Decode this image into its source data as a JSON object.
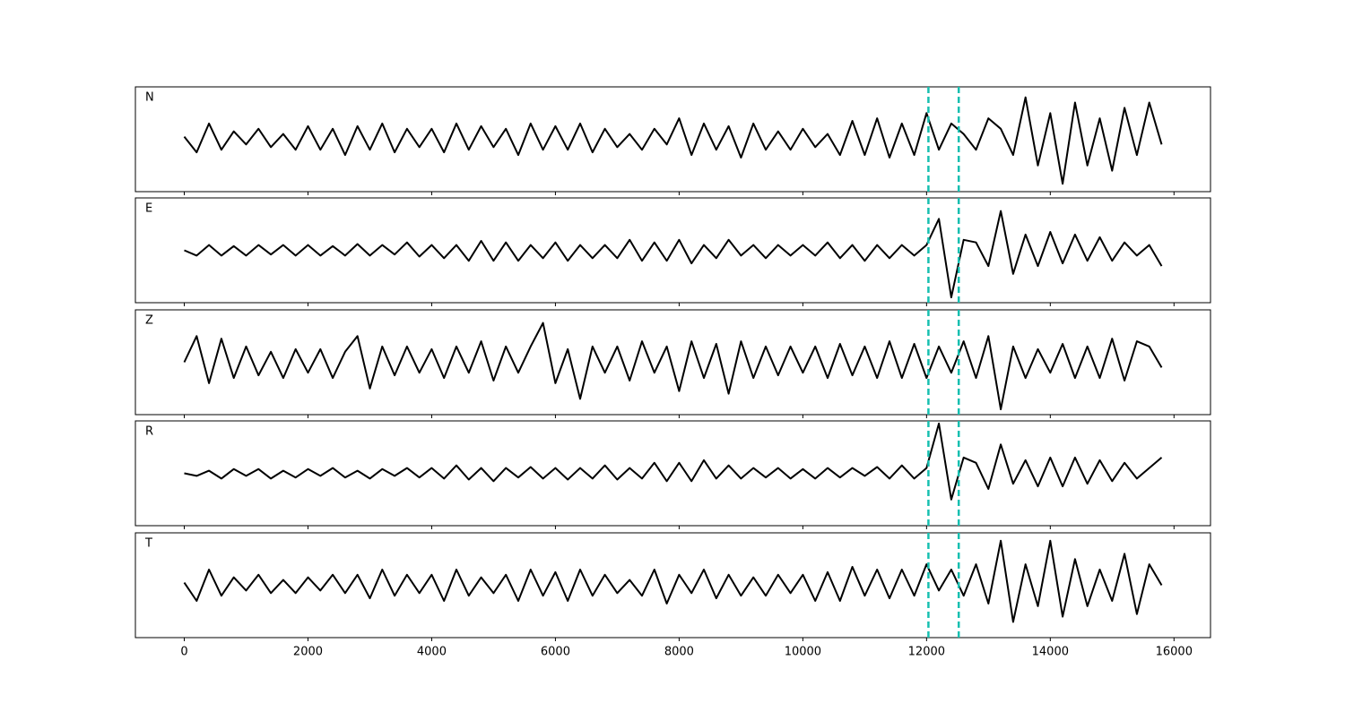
{
  "chart_data": {
    "type": "line",
    "x": [
      0,
      200,
      400,
      600,
      800,
      1000,
      1200,
      1400,
      1600,
      1800,
      2000,
      2200,
      2400,
      2600,
      2800,
      3000,
      3200,
      3400,
      3600,
      3800,
      4000,
      4200,
      4400,
      4600,
      4800,
      5000,
      5200,
      5400,
      5600,
      5800,
      6000,
      6200,
      6400,
      6600,
      6800,
      7000,
      7200,
      7400,
      7600,
      7800,
      8000,
      8200,
      8400,
      8600,
      8800,
      9000,
      9200,
      9400,
      9600,
      9800,
      10000,
      10200,
      10400,
      10600,
      10800,
      11000,
      11200,
      11400,
      11600,
      11800,
      12000,
      12200,
      12400,
      12600,
      12800,
      13000,
      13200,
      13400,
      13600,
      13800,
      14000,
      14200,
      14400,
      14600,
      14800,
      15000,
      15200,
      15400,
      15600,
      15800
    ],
    "series": [
      {
        "name": "N",
        "color": "#000000",
        "values": [
          0.05,
          -0.25,
          0.3,
          -0.2,
          0.15,
          -0.1,
          0.2,
          -0.15,
          0.1,
          -0.2,
          0.25,
          -0.2,
          0.2,
          -0.3,
          0.25,
          -0.2,
          0.3,
          -0.25,
          0.2,
          -0.15,
          0.2,
          -0.25,
          0.3,
          -0.2,
          0.25,
          -0.15,
          0.2,
          -0.3,
          0.3,
          -0.2,
          0.25,
          -0.2,
          0.3,
          -0.25,
          0.2,
          -0.15,
          0.1,
          -0.2,
          0.2,
          -0.1,
          0.4,
          -0.3,
          0.3,
          -0.2,
          0.25,
          -0.35,
          0.3,
          -0.2,
          0.15,
          -0.2,
          0.2,
          -0.15,
          0.1,
          -0.3,
          0.35,
          -0.3,
          0.4,
          -0.35,
          0.3,
          -0.3,
          0.5,
          -0.2,
          0.3,
          0.1,
          -0.2,
          0.4,
          0.2,
          -0.3,
          0.8,
          -0.5,
          0.5,
          -0.85,
          0.7,
          -0.5,
          0.4,
          -0.6,
          0.6,
          -0.3,
          0.7,
          -0.1
        ]
      },
      {
        "name": "E",
        "color": "#000000",
        "values": [
          0,
          -0.1,
          0.1,
          -0.1,
          0.08,
          -0.1,
          0.1,
          -0.08,
          0.1,
          -0.1,
          0.1,
          -0.1,
          0.08,
          -0.1,
          0.12,
          -0.1,
          0.1,
          -0.08,
          0.15,
          -0.12,
          0.1,
          -0.15,
          0.1,
          -0.2,
          0.18,
          -0.2,
          0.15,
          -0.2,
          0.1,
          -0.15,
          0.15,
          -0.2,
          0.1,
          -0.15,
          0.1,
          -0.15,
          0.2,
          -0.2,
          0.15,
          -0.2,
          0.2,
          -0.25,
          0.1,
          -0.15,
          0.2,
          -0.1,
          0.1,
          -0.15,
          0.1,
          -0.1,
          0.1,
          -0.1,
          0.15,
          -0.15,
          0.1,
          -0.2,
          0.1,
          -0.15,
          0.1,
          -0.1,
          0.1,
          0.6,
          -0.9,
          0.2,
          0.15,
          -0.3,
          0.75,
          -0.45,
          0.3,
          -0.3,
          0.35,
          -0.25,
          0.3,
          -0.2,
          0.25,
          -0.2,
          0.15,
          -0.1,
          0.1,
          -0.3
        ]
      },
      {
        "name": "Z",
        "color": "#000000",
        "values": [
          0,
          0.5,
          -0.4,
          0.45,
          -0.3,
          0.3,
          -0.25,
          0.2,
          -0.3,
          0.25,
          -0.2,
          0.25,
          -0.3,
          0.2,
          0.5,
          -0.5,
          0.3,
          -0.25,
          0.3,
          -0.2,
          0.25,
          -0.3,
          0.3,
          -0.2,
          0.4,
          -0.35,
          0.3,
          -0.2,
          0.3,
          0.75,
          -0.4,
          0.25,
          -0.7,
          0.3,
          -0.2,
          0.3,
          -0.35,
          0.4,
          -0.2,
          0.3,
          -0.55,
          0.4,
          -0.3,
          0.35,
          -0.6,
          0.4,
          -0.3,
          0.3,
          -0.25,
          0.3,
          -0.2,
          0.3,
          -0.3,
          0.35,
          -0.25,
          0.3,
          -0.3,
          0.4,
          -0.3,
          0.35,
          -0.3,
          0.3,
          -0.2,
          0.4,
          -0.3,
          0.5,
          -0.9,
          0.3,
          -0.3,
          0.25,
          -0.2,
          0.35,
          -0.3,
          0.3,
          -0.3,
          0.45,
          -0.35,
          0.4,
          0.3,
          -0.1
        ]
      },
      {
        "name": "R",
        "color": "#000000",
        "values": [
          0,
          -0.05,
          0.05,
          -0.1,
          0.08,
          -0.05,
          0.08,
          -0.1,
          0.05,
          -0.08,
          0.08,
          -0.05,
          0.1,
          -0.08,
          0.05,
          -0.1,
          0.08,
          -0.05,
          0.1,
          -0.08,
          0.1,
          -0.1,
          0.15,
          -0.12,
          0.1,
          -0.15,
          0.1,
          -0.08,
          0.12,
          -0.1,
          0.1,
          -0.12,
          0.1,
          -0.1,
          0.15,
          -0.12,
          0.1,
          -0.1,
          0.2,
          -0.15,
          0.2,
          -0.15,
          0.25,
          -0.1,
          0.15,
          -0.1,
          0.1,
          -0.08,
          0.1,
          -0.1,
          0.08,
          -0.1,
          0.1,
          -0.08,
          0.1,
          -0.05,
          0.12,
          -0.1,
          0.15,
          -0.1,
          0.1,
          0.95,
          -0.5,
          0.3,
          0.2,
          -0.3,
          0.55,
          -0.2,
          0.25,
          -0.25,
          0.3,
          -0.25,
          0.3,
          -0.2,
          0.25,
          -0.15,
          0.2,
          -0.1,
          0.1,
          0.3
        ]
      },
      {
        "name": "T",
        "color": "#000000",
        "values": [
          0.05,
          -0.3,
          0.3,
          -0.2,
          0.15,
          -0.1,
          0.2,
          -0.15,
          0.1,
          -0.15,
          0.15,
          -0.1,
          0.2,
          -0.15,
          0.2,
          -0.25,
          0.3,
          -0.2,
          0.2,
          -0.15,
          0.2,
          -0.3,
          0.3,
          -0.2,
          0.15,
          -0.15,
          0.2,
          -0.3,
          0.3,
          -0.2,
          0.25,
          -0.3,
          0.3,
          -0.2,
          0.2,
          -0.15,
          0.1,
          -0.2,
          0.3,
          -0.35,
          0.2,
          -0.15,
          0.3,
          -0.25,
          0.2,
          -0.2,
          0.15,
          -0.2,
          0.2,
          -0.15,
          0.2,
          -0.3,
          0.25,
          -0.3,
          0.35,
          -0.2,
          0.3,
          -0.25,
          0.3,
          -0.2,
          0.4,
          -0.1,
          0.3,
          -0.2,
          0.4,
          -0.35,
          0.85,
          -0.7,
          0.4,
          -0.4,
          0.85,
          -0.6,
          0.5,
          -0.4,
          0.3,
          -0.3,
          0.6,
          -0.55,
          0.4,
          0
        ]
      }
    ],
    "xlim": [
      -790,
      16590
    ],
    "xticks": [
      0,
      2000,
      4000,
      6000,
      8000,
      10000,
      12000,
      14000,
      16000
    ],
    "ylim": [
      -1,
      1
    ],
    "vlines": [
      12030,
      12520
    ],
    "vline_color": "#17bfb0"
  }
}
